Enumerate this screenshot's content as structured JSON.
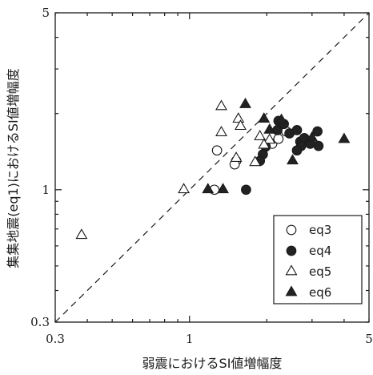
{
  "chart_data": {
    "type": "scatter",
    "xscale": "log",
    "yscale": "log",
    "xlim": [
      0.3,
      5
    ],
    "ylim": [
      0.3,
      5
    ],
    "xticks": [
      "0.3",
      "1",
      "5"
    ],
    "yticks": [
      "0.3",
      "1",
      "5"
    ],
    "xlabel": "弱震におけるSI値増幅度",
    "ylabel": "集集地震(eq1)におけるSI値増幅度",
    "reference_line": "y = x (dashed)",
    "legend_position": "bottom-right",
    "series": [
      {
        "name": "eq3",
        "marker": "circle-open",
        "points": [
          {
            "x": 1.28,
            "y": 1.43
          },
          {
            "x": 1.25,
            "y": 1.0
          },
          {
            "x": 1.52,
            "y": 1.3
          },
          {
            "x": 1.5,
            "y": 1.26
          },
          {
            "x": 2.1,
            "y": 1.52
          },
          {
            "x": 2.22,
            "y": 1.59
          },
          {
            "x": 2.38,
            "y": 1.7
          }
        ]
      },
      {
        "name": "eq4",
        "marker": "circle-filled",
        "points": [
          {
            "x": 1.66,
            "y": 1.0
          },
          {
            "x": 2.22,
            "y": 1.87
          },
          {
            "x": 2.33,
            "y": 1.82
          },
          {
            "x": 2.2,
            "y": 1.72
          },
          {
            "x": 2.45,
            "y": 1.67
          },
          {
            "x": 2.62,
            "y": 1.72
          },
          {
            "x": 2.7,
            "y": 1.55
          },
          {
            "x": 2.8,
            "y": 1.6
          },
          {
            "x": 2.95,
            "y": 1.52
          },
          {
            "x": 3.15,
            "y": 1.7
          },
          {
            "x": 3.18,
            "y": 1.49
          },
          {
            "x": 2.72,
            "y": 1.49
          },
          {
            "x": 2.62,
            "y": 1.43
          },
          {
            "x": 1.98,
            "y": 1.48
          },
          {
            "x": 1.93,
            "y": 1.38
          },
          {
            "x": 1.88,
            "y": 1.3
          }
        ]
      },
      {
        "name": "eq5",
        "marker": "triangle-open",
        "points": [
          {
            "x": 0.38,
            "y": 0.66
          },
          {
            "x": 0.95,
            "y": 1.0
          },
          {
            "x": 1.33,
            "y": 2.13
          },
          {
            "x": 1.33,
            "y": 1.68
          },
          {
            "x": 1.55,
            "y": 1.9
          },
          {
            "x": 1.58,
            "y": 1.78
          },
          {
            "x": 1.52,
            "y": 1.33
          },
          {
            "x": 1.8,
            "y": 1.28
          },
          {
            "x": 1.88,
            "y": 1.62
          },
          {
            "x": 2.05,
            "y": 1.57
          },
          {
            "x": 1.95,
            "y": 1.5
          }
        ]
      },
      {
        "name": "eq6",
        "marker": "triangle-filled",
        "points": [
          {
            "x": 1.65,
            "y": 2.17
          },
          {
            "x": 1.95,
            "y": 1.9
          },
          {
            "x": 1.18,
            "y": 1.0
          },
          {
            "x": 1.35,
            "y": 1.0
          },
          {
            "x": 2.05,
            "y": 1.72
          },
          {
            "x": 2.28,
            "y": 1.88
          },
          {
            "x": 2.52,
            "y": 1.3
          },
          {
            "x": 3.0,
            "y": 1.6
          },
          {
            "x": 4.0,
            "y": 1.58
          }
        ]
      }
    ]
  }
}
